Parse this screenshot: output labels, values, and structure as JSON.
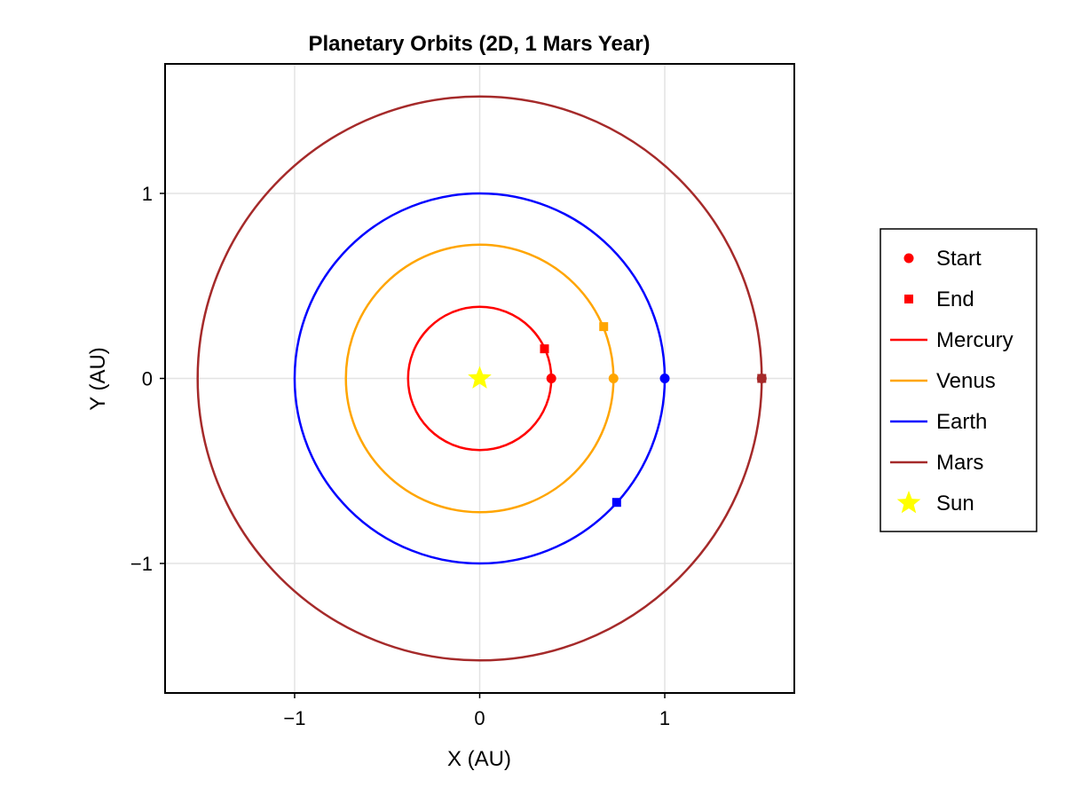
{
  "chart_data": {
    "type": "line",
    "title": "Planetary Orbits (2D, 1 Mars Year)",
    "xlabel": "X (AU)",
    "ylabel": "Y (AU)",
    "xlim": [
      -1.7,
      1.7
    ],
    "ylim": [
      -1.7,
      1.7
    ],
    "xticks": [
      -1,
      0,
      1
    ],
    "yticks": [
      -1,
      0,
      1
    ],
    "xtick_labels": [
      "−1",
      "0",
      "1"
    ],
    "ytick_labels": [
      "−1",
      "0",
      "1"
    ],
    "grid": true,
    "legend_position": "right",
    "legend": [
      {
        "label": "Start",
        "kind": "circle-marker",
        "color": "#ff0000"
      },
      {
        "label": "End",
        "kind": "square-marker",
        "color": "#ff0000"
      },
      {
        "label": "Mercury",
        "kind": "line",
        "color": "#ff0000"
      },
      {
        "label": "Venus",
        "kind": "line",
        "color": "#ffa500"
      },
      {
        "label": "Earth",
        "kind": "line",
        "color": "#0000ff"
      },
      {
        "label": "Mars",
        "kind": "line",
        "color": "#a52a2a"
      },
      {
        "label": "Sun",
        "kind": "star-marker",
        "color": "#ffff00"
      }
    ],
    "series": [
      {
        "name": "Mercury",
        "color": "#ff0000",
        "orbit_radius": 0.387,
        "start": [
          0.387,
          0.0
        ],
        "end": [
          0.35,
          0.16
        ]
      },
      {
        "name": "Venus",
        "color": "#ffa500",
        "orbit_radius": 0.723,
        "start": [
          0.723,
          0.0
        ],
        "end": [
          0.67,
          0.28
        ]
      },
      {
        "name": "Earth",
        "color": "#0000ff",
        "orbit_radius": 1.0,
        "start": [
          1.0,
          0.0
        ],
        "end": [
          0.74,
          -0.67
        ]
      },
      {
        "name": "Mars",
        "color": "#a52a2a",
        "orbit_radius": 1.524,
        "start": [
          1.524,
          0.0
        ],
        "end": [
          1.524,
          0.0
        ]
      }
    ],
    "sun": {
      "name": "Sun",
      "position": [
        0,
        0
      ],
      "color": "#ffff00"
    }
  }
}
